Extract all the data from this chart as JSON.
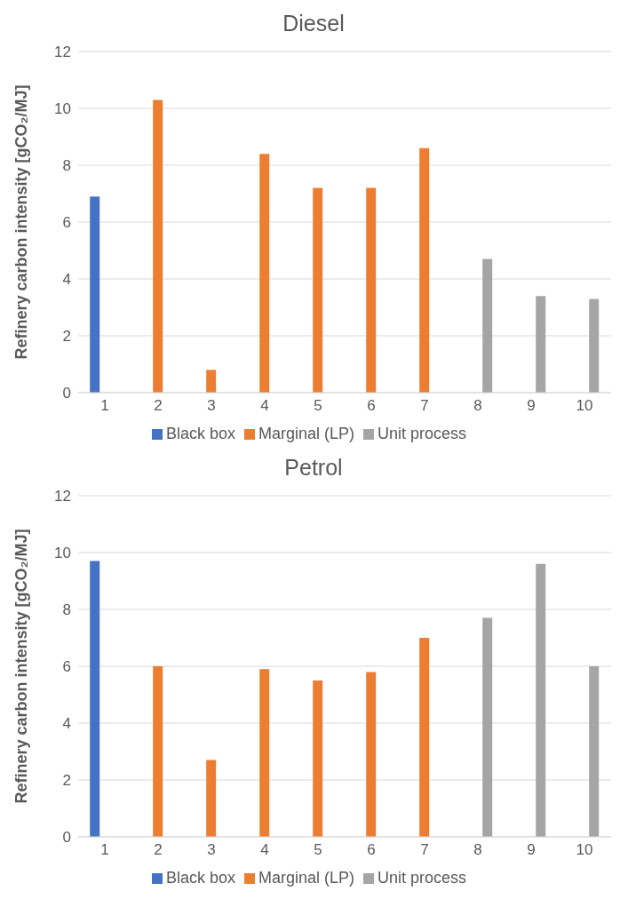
{
  "chart_data": [
    {
      "type": "bar",
      "title": "Diesel",
      "ylabel": "Refinery carbon intensity [gCO₂/MJ]",
      "categories": [
        "1",
        "2",
        "3",
        "4",
        "5",
        "6",
        "7",
        "8",
        "9",
        "10"
      ],
      "series": [
        {
          "name": "Black box",
          "color": "#4472c4",
          "values": [
            6.9,
            null,
            null,
            null,
            null,
            null,
            null,
            null,
            null,
            null
          ]
        },
        {
          "name": "Marginal (LP)",
          "color": "#ed7d31",
          "values": [
            null,
            10.3,
            0.8,
            8.4,
            7.2,
            7.2,
            8.6,
            null,
            null,
            null
          ]
        },
        {
          "name": "Unit process",
          "color": "#a5a5a5",
          "values": [
            null,
            null,
            null,
            null,
            null,
            null,
            null,
            4.7,
            3.4,
            3.3
          ]
        }
      ],
      "ylim": [
        0,
        12
      ],
      "yticks": [
        0,
        2,
        4,
        6,
        8,
        10,
        12
      ],
      "grid": "y",
      "legend": "bottom"
    },
    {
      "type": "bar",
      "title": "Petrol",
      "ylabel": "Refinery carbon intensity [gCO₂/MJ]",
      "categories": [
        "1",
        "2",
        "3",
        "4",
        "5",
        "6",
        "7",
        "8",
        "9",
        "10"
      ],
      "series": [
        {
          "name": "Black box",
          "color": "#4472c4",
          "values": [
            9.7,
            null,
            null,
            null,
            null,
            null,
            null,
            null,
            null,
            null
          ]
        },
        {
          "name": "Marginal (LP)",
          "color": "#ed7d31",
          "values": [
            null,
            6.0,
            2.7,
            5.9,
            5.5,
            5.8,
            7.0,
            null,
            null,
            null
          ]
        },
        {
          "name": "Unit process",
          "color": "#a5a5a5",
          "values": [
            null,
            null,
            null,
            null,
            null,
            null,
            null,
            7.7,
            9.6,
            6.0
          ]
        }
      ],
      "ylim": [
        0,
        12
      ],
      "yticks": [
        0,
        2,
        4,
        6,
        8,
        10,
        12
      ],
      "grid": "y",
      "legend": "bottom"
    }
  ]
}
